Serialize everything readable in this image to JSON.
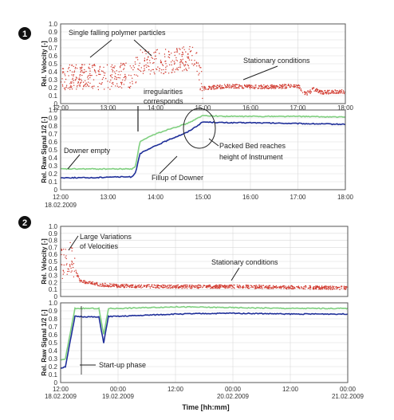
{
  "colors": {
    "velocity": "#d13a2f",
    "signal1": "#7fcf7f",
    "signal2": "#1f2f99",
    "grid": "#d9d9d9",
    "frame": "#555555"
  },
  "figure1": {
    "badge": "1",
    "date_label": "18.02.2009",
    "annotations": {
      "falling": "Single falling polymer particles",
      "stationary": "Stationary conditions",
      "irr1": "irregularities",
      "irr2": "corresponds",
      "empty": "Downer empty",
      "packed1": "Packed Bed  reaches",
      "packed2": "height of Instrument",
      "fillup": "Fillup of Downer"
    }
  },
  "figure2": {
    "badge": "2",
    "xlabel": "Time [hh:mm]",
    "annotations": {
      "large1": "Large Variations",
      "large2": "of Velocities",
      "stationary": "Stationary conditions",
      "startup": "Start-up phase"
    }
  },
  "chart_data": [
    {
      "type": "scatter",
      "ylabel": "Rel. Velocity [-]",
      "ylim": [
        0,
        1.0
      ],
      "yticks": [
        "0",
        "0.1",
        "0.2",
        "0.3",
        "0.4",
        "0.5",
        "0.6",
        "0.7",
        "0.8",
        "0.9",
        "1.0"
      ],
      "xlim": [
        "12:00",
        "18:00"
      ],
      "xticks": [
        "12:00",
        "13:00",
        "14:00",
        "15:00",
        "16:00",
        "17:00",
        "18:00"
      ],
      "grid": true,
      "series": [
        {
          "x": [
            "12:00",
            "12:30",
            "13:00",
            "13:20",
            "13:30",
            "13:40",
            "14:00",
            "14:30",
            "14:50",
            "15:00",
            "15:30",
            "16:00",
            "16:30",
            "17:00",
            "17:10",
            "17:20",
            "17:30",
            "18:00"
          ],
          "y": [
            0.33,
            0.34,
            0.33,
            0.36,
            0.32,
            0.52,
            0.52,
            0.55,
            0.6,
            0.19,
            0.22,
            0.21,
            0.21,
            0.22,
            0.12,
            0.18,
            0.14,
            0.15
          ]
        }
      ]
    },
    {
      "type": "line",
      "ylabel": "Rel. Raw Signal 1/2 [-]",
      "ylim": [
        0,
        1.0
      ],
      "yticks": [
        "0",
        "0.1",
        "0.2",
        "0.3",
        "0.4",
        "0.5",
        "0.6",
        "0.7",
        "0.8",
        "0.9",
        "1.0"
      ],
      "xlim": [
        "12:00",
        "18:00"
      ],
      "xticks": [
        "12:00",
        "13:00",
        "14:00",
        "15:00",
        "16:00",
        "17:00",
        "18:00"
      ],
      "grid": true,
      "series": [
        {
          "x": [
            "12:00",
            "12:45",
            "13:00",
            "13:30",
            "13:35",
            "13:40",
            "14:00",
            "14:20",
            "14:40",
            "15:00",
            "15:30",
            "16:00",
            "17:00",
            "18:00"
          ],
          "y": [
            0.26,
            0.26,
            0.26,
            0.26,
            0.3,
            0.6,
            0.7,
            0.77,
            0.83,
            0.93,
            0.92,
            0.92,
            0.92,
            0.91
          ]
        },
        {
          "x": [
            "12:00",
            "12:45",
            "13:00",
            "13:30",
            "13:35",
            "13:40",
            "14:00",
            "14:20",
            "14:40",
            "15:00",
            "15:30",
            "16:00",
            "17:00",
            "18:00"
          ],
          "y": [
            0.15,
            0.15,
            0.16,
            0.16,
            0.22,
            0.45,
            0.55,
            0.64,
            0.72,
            0.85,
            0.84,
            0.84,
            0.83,
            0.82
          ]
        }
      ]
    },
    {
      "type": "scatter",
      "ylabel": "Rel. Velocity [-]",
      "ylim": [
        0,
        1.0
      ],
      "yticks": [
        "0",
        "0.1",
        "0.2",
        "0.3",
        "0.4",
        "0.5",
        "0.6",
        "0.7",
        "0.8",
        "0.9",
        "1.0"
      ],
      "xlim": [
        "18.02.2009 12:00",
        "21.02.2009 00:00"
      ],
      "xticks": [
        "12:00\n18.02.2009",
        "00:00\n19.02.2009",
        "12:00",
        "00:00\n20.02.2009",
        "12:00",
        "00:00\n21.02.2009"
      ],
      "grid": true,
      "series": [
        {
          "x": [
            "18.02.2009 12:00",
            "18.02.2009 14:00",
            "18.02.2009 16:00",
            "18.02.2009 20:00",
            "19.02.2009 00:00",
            "19.02.2009 12:00",
            "20.02.2009 00:00",
            "20.02.2009 12:00",
            "21.02.2009 00:00"
          ],
          "y": [
            0.45,
            0.55,
            0.22,
            0.17,
            0.15,
            0.14,
            0.14,
            0.13,
            0.12
          ]
        }
      ]
    },
    {
      "type": "line",
      "ylabel": "Rel. Raw Signal 1/2 [-]",
      "ylim": [
        0,
        1.0
      ],
      "yticks": [
        "0",
        "0.1",
        "0.2",
        "0.3",
        "0.4",
        "0.5",
        "0.6",
        "0.7",
        "0.8",
        "0.9",
        "1.0"
      ],
      "xlim": [
        "18.02.2009 12:00",
        "21.02.2009 00:00"
      ],
      "xticks": [
        "12:00\n18.02.2009",
        "00:00\n19.02.2009",
        "12:00",
        "00:00\n20.02.2009",
        "12:00",
        "00:00\n21.02.2009"
      ],
      "grid": true,
      "series": [
        {
          "x": [
            "18.02.2009 12:00",
            "18.02.2009 13:00",
            "18.02.2009 15:00",
            "18.02.2009 20:00",
            "18.02.2009 21:00",
            "18.02.2009 22:00",
            "19.02.2009 00:00",
            "19.02.2009 12:00",
            "20.02.2009 00:00",
            "20.02.2009 12:00",
            "21.02.2009 00:00"
          ],
          "y": [
            0.28,
            0.3,
            0.93,
            0.93,
            0.6,
            0.93,
            0.93,
            0.95,
            0.94,
            0.93,
            0.93
          ]
        },
        {
          "x": [
            "18.02.2009 12:00",
            "18.02.2009 13:00",
            "18.02.2009 15:00",
            "18.02.2009 20:00",
            "18.02.2009 21:00",
            "18.02.2009 22:00",
            "19.02.2009 00:00",
            "19.02.2009 12:00",
            "20.02.2009 00:00",
            "20.02.2009 12:00",
            "21.02.2009 00:00"
          ],
          "y": [
            0.18,
            0.2,
            0.83,
            0.82,
            0.5,
            0.83,
            0.83,
            0.86,
            0.87,
            0.86,
            0.86
          ]
        }
      ]
    }
  ]
}
